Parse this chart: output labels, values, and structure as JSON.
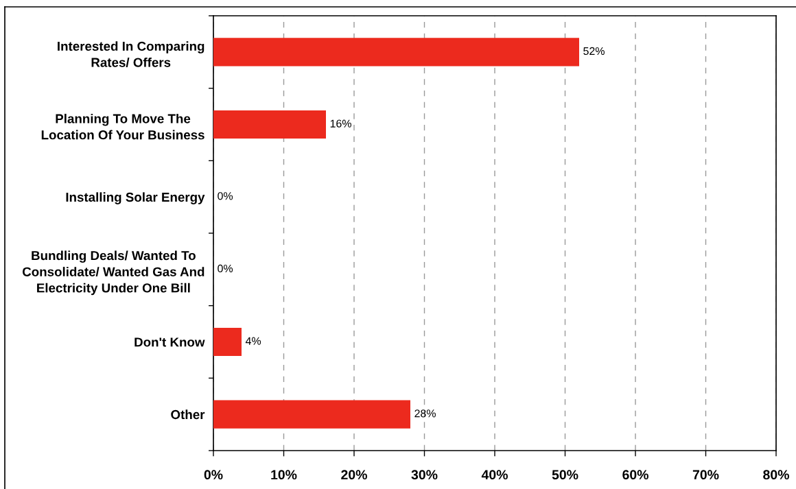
{
  "chart_data": {
    "type": "bar",
    "orientation": "horizontal",
    "categories": [
      "Interested In Comparing\nRates/ Offers",
      "Planning To Move The\nLocation Of Your Business",
      "Installing Solar Energy",
      "Bundling Deals/ Wanted To\nConsolidate/ Wanted Gas And\nElectricity Under One Bill",
      "Don't Know",
      "Other"
    ],
    "values": [
      52,
      16,
      0,
      0,
      4,
      28
    ],
    "color": "#ec2a1e",
    "value_labels": [
      "52%",
      "16%",
      "0%",
      "0%",
      "4%",
      "28%"
    ],
    "xlim": [
      0,
      80
    ],
    "xticks": [
      {
        "value": 0,
        "label": "0%"
      },
      {
        "value": 10,
        "label": "10%"
      },
      {
        "value": 20,
        "label": "20%"
      },
      {
        "value": 30,
        "label": "30%"
      },
      {
        "value": 40,
        "label": "40%"
      },
      {
        "value": 50,
        "label": "50%"
      },
      {
        "value": 60,
        "label": "60%"
      },
      {
        "value": 70,
        "label": "70%"
      },
      {
        "value": 80,
        "label": "80%"
      }
    ],
    "grid": "x"
  }
}
